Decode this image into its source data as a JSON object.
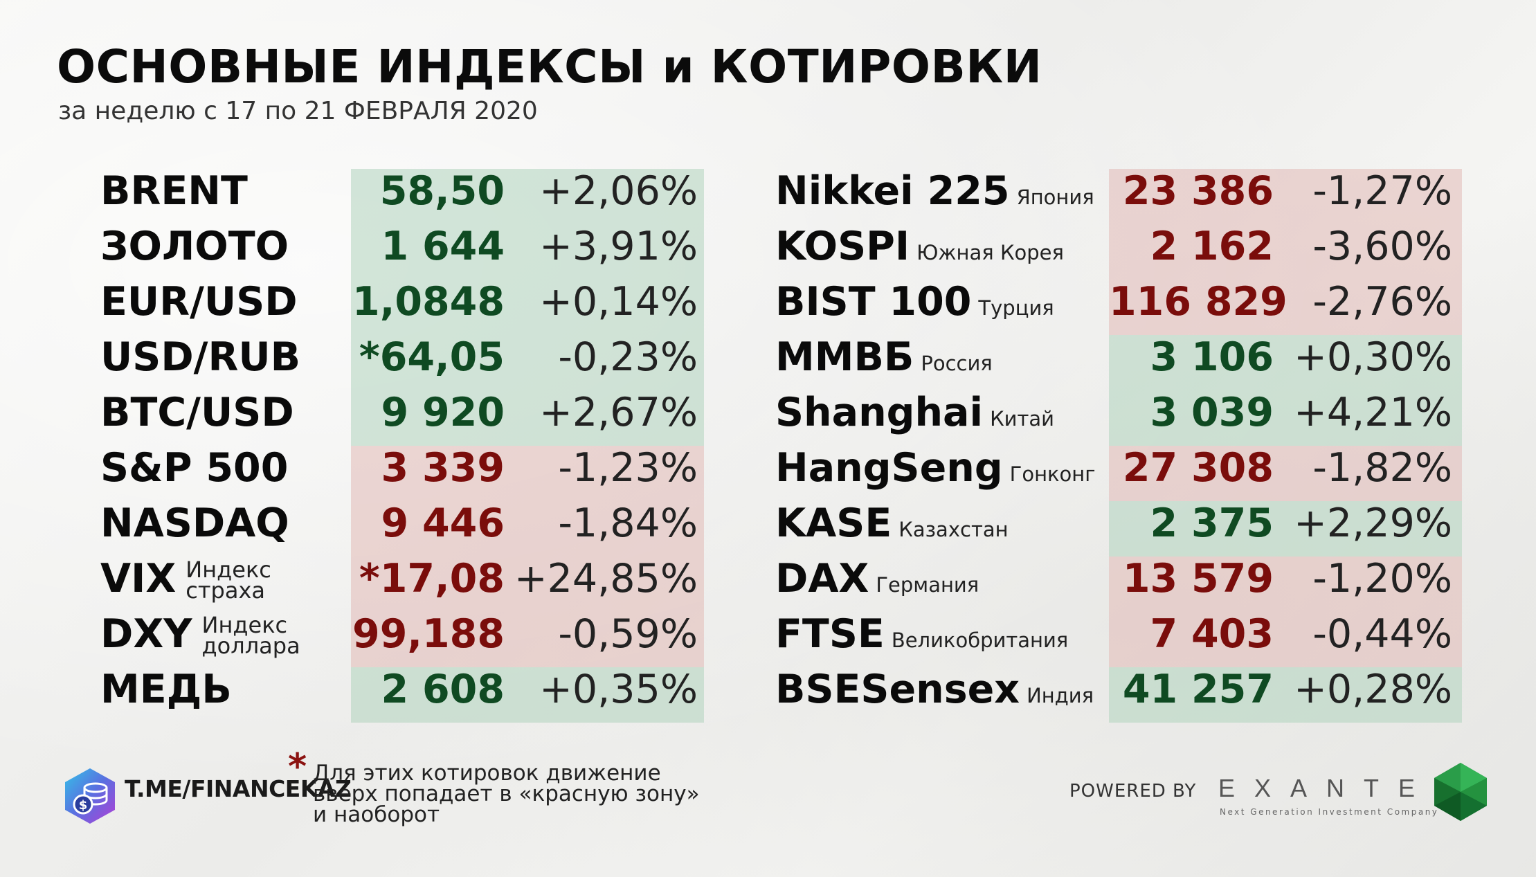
{
  "header": {
    "title": "ОСНОВНЫЕ ИНДЕКСЫ и КОТИРОВКИ",
    "subtitle": "за неделю с 17 по 21 ФЕВРАЛЯ 2020"
  },
  "colors": {
    "up_value": "#0f4a22",
    "down_value": "#7a0d0b",
    "green_band": "#b0d3be",
    "red_band": "#e2bab6",
    "asterisk": "#8b1210"
  },
  "left_table": [
    {
      "name": "BRENT",
      "value": "58,50",
      "change": "+2,06%",
      "zone": "green"
    },
    {
      "name": "ЗОЛОТО",
      "value": "1 644",
      "change": "+3,91%",
      "zone": "green"
    },
    {
      "name": "EUR/USD",
      "value": "1,0848",
      "change": "+0,14%",
      "zone": "green"
    },
    {
      "name": "USD/RUB",
      "value": "*64,05",
      "change": "-0,23%",
      "zone": "green"
    },
    {
      "name": "BTC/USD",
      "value": "9 920",
      "change": "+2,67%",
      "zone": "green"
    },
    {
      "name": "S&P 500",
      "value": "3 339",
      "change": "-1,23%",
      "zone": "red"
    },
    {
      "name": "NASDAQ",
      "value": "9 446",
      "change": "-1,84%",
      "zone": "red"
    },
    {
      "name": "VIX",
      "sub1": "Индекс",
      "sub2": "страха",
      "value": "*17,08",
      "change": "+24,85%",
      "zone": "red"
    },
    {
      "name": "DXY",
      "sub1": "Индекс",
      "sub2": "доллара",
      "value": "99,188",
      "change": "-0,59%",
      "zone": "red"
    },
    {
      "name": "МЕДЬ",
      "value": "2 608",
      "change": "+0,35%",
      "zone": "green"
    }
  ],
  "right_table": [
    {
      "name": "Nikkei 225",
      "country": "Япония",
      "value": "23 386",
      "change": "-1,27%",
      "zone": "red"
    },
    {
      "name": "KOSPI",
      "country": "Южная Корея",
      "value": "2 162",
      "change": "-3,60%",
      "zone": "red"
    },
    {
      "name": "BIST 100",
      "country": "Турция",
      "value": "116 829",
      "change": "-2,76%",
      "zone": "red"
    },
    {
      "name": "ММВБ",
      "country": "Россия",
      "value": "3 106",
      "change": "+0,30%",
      "zone": "green"
    },
    {
      "name": "Shanghai",
      "country": "Китай",
      "value": "3 039",
      "change": "+4,21%",
      "zone": "green"
    },
    {
      "name": "HangSeng",
      "country": "Гонконг",
      "value": "27 308",
      "change": "-1,82%",
      "zone": "red"
    },
    {
      "name": "KASE",
      "country": "Казахстан",
      "value": "2 375",
      "change": "+2,29%",
      "zone": "green"
    },
    {
      "name": "DAX",
      "country": "Германия",
      "value": "13 579",
      "change": "-1,20%",
      "zone": "red"
    },
    {
      "name": "FTSE",
      "country": "Великобритания",
      "value": "7 403",
      "change": "-0,44%",
      "zone": "red"
    },
    {
      "name": "BSESensex",
      "country": "Индия",
      "value": "41 257",
      "change": "+0,28%",
      "zone": "green"
    }
  ],
  "footer": {
    "channel": "T.ME/FINANCEKAZ",
    "asterisk": "*",
    "note": "Для этих котировок движение\nвверх попадает в «красную зону»\nи наоборот",
    "powered_by": "POWERED BY",
    "brand": "EXANTE",
    "brand_tagline": "Next Generation Investment Company",
    "channel_icon": "coins-hexagon-icon",
    "brand_icon": "green-gem-icon"
  }
}
